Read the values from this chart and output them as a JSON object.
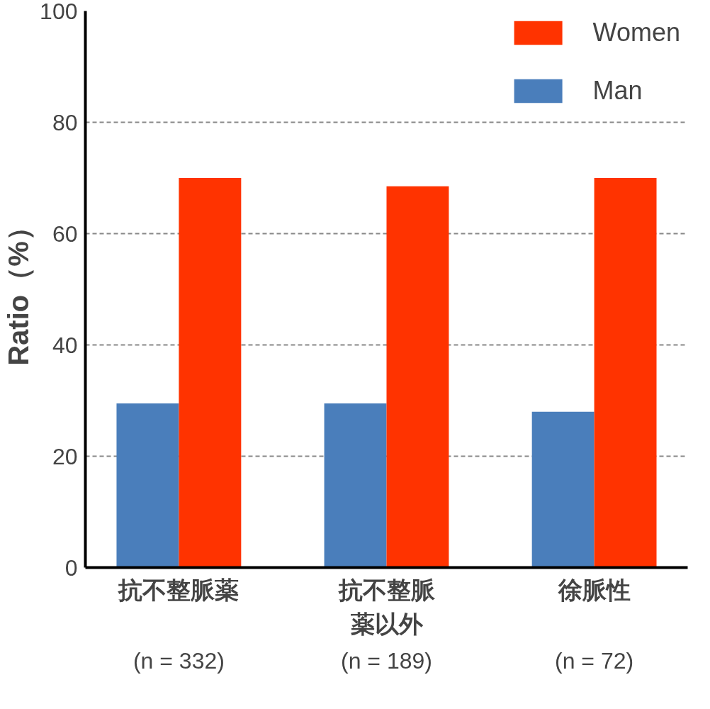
{
  "chart_data": {
    "type": "bar",
    "ylabel": "Ratio（%）",
    "categories": [
      "抗不整脈薬",
      "抗不整脈薬以外",
      "徐脈性"
    ],
    "series": [
      {
        "name": "Man",
        "color": "#4a7ebb",
        "values": [
          29.5,
          29.5,
          28
        ]
      },
      {
        "name": "Women",
        "color": "#ff3300",
        "values": [
          70,
          68.5,
          70
        ]
      }
    ],
    "annotations": [
      "(n = 332)",
      "(n = 189)",
      "(n = 72)"
    ],
    "ylim": [
      0,
      100
    ],
    "yticks": [
      0,
      20,
      40,
      60,
      80,
      100
    ],
    "grid": "y",
    "legend": "top right"
  }
}
